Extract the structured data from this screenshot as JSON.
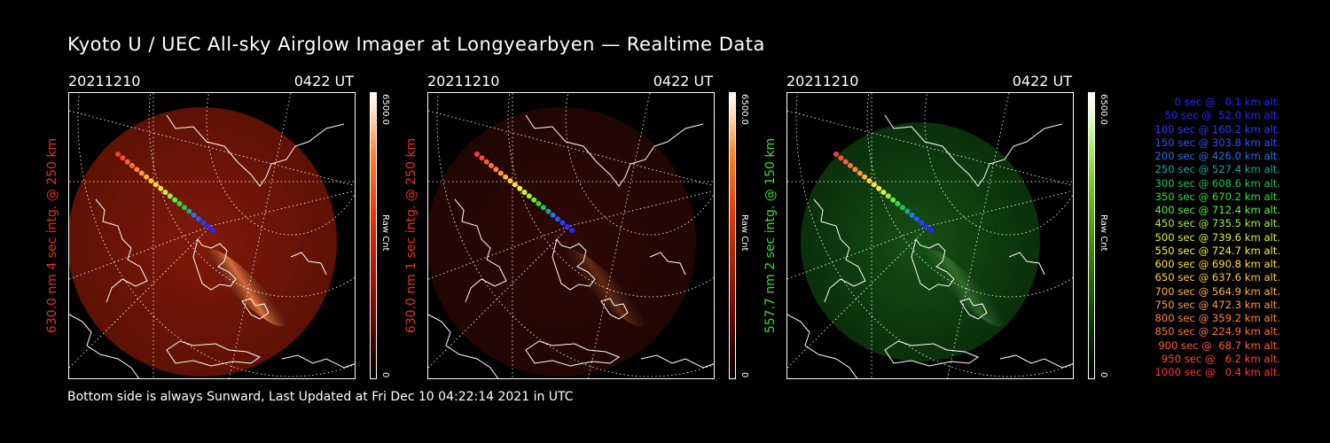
{
  "title": "Kyoto U / UEC All-sky Airglow Imager at Longyearbyen — Realtime Data",
  "footer": "Bottom side is always Sunward, Last Updated at Fri Dec 10 04:22:14 2021 in UTC",
  "panels": [
    {
      "date": "20211210",
      "time": "0422 UT",
      "ylabel": "630.0 nm 4 sec intg. @ 250 km",
      "ylabel_color": "#e8331a",
      "cb_max": "6500.0",
      "cb_unit": "Raw Cnt",
      "cb_min": "0",
      "colorscale": "red",
      "brightness": 1.0
    },
    {
      "date": "20211210",
      "time": "0422 UT",
      "ylabel": "630.0 nm 1 sec intg. @ 250 km",
      "ylabel_color": "#e8331a",
      "cb_max": "6500.0",
      "cb_unit": "Raw Cnt",
      "cb_min": "0",
      "colorscale": "red",
      "brightness": 0.35
    },
    {
      "date": "20211210",
      "time": "0422 UT",
      "ylabel": "557.7 nm 2 sec intg. @ 150 km",
      "ylabel_color": "#3ddc2a",
      "cb_max": "6500.0",
      "cb_unit": "Raw Cnt",
      "cb_min": "0",
      "colorscale": "green",
      "brightness": 0.7
    }
  ],
  "legend": [
    {
      "text": "0 sec @   0.1 km alt.",
      "color": "#2828ff"
    },
    {
      "text": "50 sec @  52.0 km alt.",
      "color": "#2828ff"
    },
    {
      "text": "100 sec @ 160.2 km alt.",
      "color": "#2a3cff"
    },
    {
      "text": "150 sec @ 303.8 km alt.",
      "color": "#2a55ff"
    },
    {
      "text": "200 sec @ 426.0 km alt.",
      "color": "#2a70e8"
    },
    {
      "text": "250 sec @ 527.4 km alt.",
      "color": "#20a0a0"
    },
    {
      "text": "300 sec @ 608.6 km alt.",
      "color": "#20c060"
    },
    {
      "text": "350 sec @ 670.2 km alt.",
      "color": "#30e030"
    },
    {
      "text": "400 sec @ 712.4 km alt.",
      "color": "#60f040"
    },
    {
      "text": "450 sec @ 735.5 km alt.",
      "color": "#a0f040"
    },
    {
      "text": "500 sec @ 739.6 km alt.",
      "color": "#d8f040"
    },
    {
      "text": "550 sec @ 724.7 km alt.",
      "color": "#f8f040"
    },
    {
      "text": "600 sec @ 690.8 km alt.",
      "color": "#ffe040"
    },
    {
      "text": "650 sec @ 637.6 km alt.",
      "color": "#ffc840"
    },
    {
      "text": "700 sec @ 564.9 km alt.",
      "color": "#ffb040"
    },
    {
      "text": "750 sec @ 472.3 km alt.",
      "color": "#ff9a40"
    },
    {
      "text": "800 sec @ 359.2 km alt.",
      "color": "#ff8440"
    },
    {
      "text": "850 sec @ 224.9 km alt.",
      "color": "#ff7040"
    },
    {
      "text": "900 sec @  68.7 km alt.",
      "color": "#ff5a3a"
    },
    {
      "text": "950 sec @   6.2 km alt.",
      "color": "#ff4a34"
    },
    {
      "text": "1000 sec @   0.4 km alt.",
      "color": "#ff3a2e"
    }
  ]
}
